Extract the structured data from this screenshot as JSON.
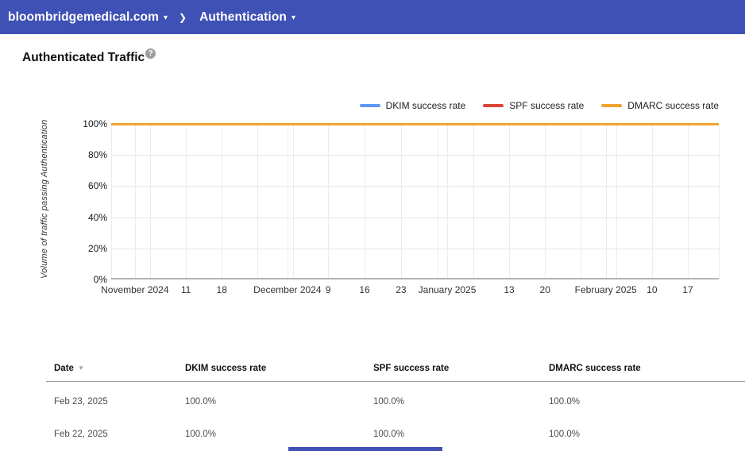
{
  "icons": {
    "caret_down": "▾",
    "chevron_right": "❯",
    "help": "?",
    "sort_desc": "▼"
  },
  "app_bar": {
    "domain": "bloombridgemedical.com",
    "section": "Authentication"
  },
  "page": {
    "title": "Authenticated Traffic"
  },
  "chart_data": {
    "type": "line",
    "title": "Authenticated Traffic",
    "xlabel": "",
    "ylabel": "Volume of traffic passing Authentication",
    "ylim": [
      0,
      100
    ],
    "grid": true,
    "legend_position": "top-right",
    "x_range": [
      "Oct 28, 2024",
      "Feb 23, 2025"
    ],
    "y_ticks": [
      {
        "label": "100%",
        "value": 100
      },
      {
        "label": "80%",
        "value": 80
      },
      {
        "label": "60%",
        "value": 60
      },
      {
        "label": "40%",
        "value": 40
      },
      {
        "label": "20%",
        "value": 20
      },
      {
        "label": "0%",
        "value": 0
      }
    ],
    "x_ticks": [
      {
        "label": "November 2024",
        "pct": 3.9
      },
      {
        "label": "11",
        "pct": 12.3
      },
      {
        "label": "18",
        "pct": 18.2
      },
      {
        "label": "December 2024",
        "pct": 29.0
      },
      {
        "label": "9",
        "pct": 35.7
      },
      {
        "label": "16",
        "pct": 41.7
      },
      {
        "label": "23",
        "pct": 47.7
      },
      {
        "label": "January 2025",
        "pct": 55.3
      },
      {
        "label": "13",
        "pct": 65.5
      },
      {
        "label": "20",
        "pct": 71.4
      },
      {
        "label": "February 2025",
        "pct": 81.4
      },
      {
        "label": "10",
        "pct": 89.0
      },
      {
        "label": "17",
        "pct": 94.9
      }
    ],
    "gridlines_pct": [
      0,
      3.9,
      6.4,
      12.3,
      18.2,
      24.1,
      29.0,
      29.9,
      35.7,
      41.7,
      47.7,
      53.7,
      55.3,
      59.6,
      65.5,
      71.4,
      77.3,
      81.4,
      83.1,
      89.0,
      94.9,
      100
    ],
    "series": [
      {
        "name": "DKIM success rate",
        "color": "#5e97f6",
        "constant_value_percent": 100
      },
      {
        "name": "SPF success rate",
        "color": "#db4437",
        "constant_value_percent": 100
      },
      {
        "name": "DMARC success rate",
        "color": "#efa32f",
        "constant_value_percent": 100
      }
    ]
  },
  "table": {
    "headers": [
      "Date",
      "DKIM success rate",
      "SPF success rate",
      "DMARC success rate"
    ],
    "sorted_by": "Date",
    "sort_direction": "desc",
    "rows": [
      [
        "Feb 23, 2025",
        "100.0%",
        "100.0%",
        "100.0%"
      ],
      [
        "Feb 22, 2025",
        "100.0%",
        "100.0%",
        "100.0%"
      ]
    ]
  }
}
